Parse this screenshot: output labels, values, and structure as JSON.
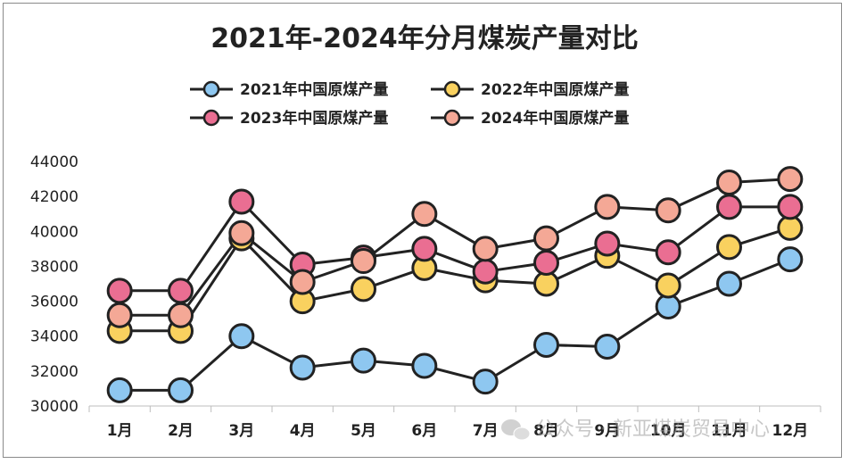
{
  "chart_data": {
    "type": "line",
    "title": "2021年-2024年分月煤炭产量对比",
    "categories": [
      "1月",
      "2月",
      "3月",
      "4月",
      "5月",
      "6月",
      "7月",
      "8月",
      "9月",
      "10月",
      "11月",
      "12月"
    ],
    "ylim": [
      30000,
      44000
    ],
    "yticks": [
      30000,
      32000,
      34000,
      36000,
      38000,
      40000,
      42000,
      44000
    ],
    "legend_position": "top",
    "grid": false,
    "series": [
      {
        "name": "2021年中国原煤产量",
        "color": "#8ec7f0",
        "values": [
          30900,
          30900,
          34000,
          32200,
          32600,
          32300,
          31400,
          33500,
          33400,
          35700,
          37000,
          38400
        ]
      },
      {
        "name": "2022年中国原煤产量",
        "color": "#f9d15f",
        "values": [
          34300,
          34300,
          39600,
          36000,
          36700,
          37900,
          37200,
          37000,
          38600,
          36900,
          39100,
          40200
        ]
      },
      {
        "name": "2023年中国原煤产量",
        "color": "#ea6e92",
        "values": [
          36600,
          36600,
          41700,
          38100,
          38500,
          39000,
          37700,
          38200,
          39300,
          38800,
          41400,
          41400
        ]
      },
      {
        "name": "2024年中国原煤产量",
        "color": "#f4a896",
        "values": [
          35200,
          35200,
          39900,
          37100,
          38300,
          41000,
          39000,
          39600,
          41400,
          41200,
          42800,
          43000
        ]
      }
    ]
  },
  "watermark": {
    "text": "公众号 · 新亚煤炭贸易中心",
    "icon": "wechat-icon"
  }
}
